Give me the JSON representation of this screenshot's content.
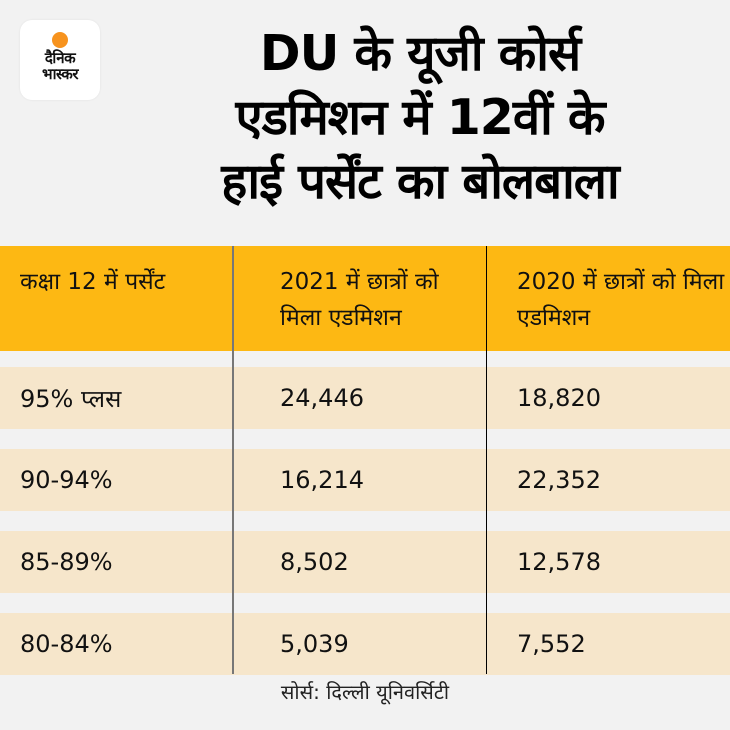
{
  "logo": {
    "line1": "दैनिक",
    "line2": "भास्कर",
    "dot_color": "#f7931e"
  },
  "title": {
    "line1": "DU के यूजी कोर्स",
    "line2": "एडमिशन में 12वीं के",
    "line3": "हाई पर्सेंट का बोलबाला"
  },
  "table": {
    "headers": [
      "कक्षा 12 में पर्सेंट",
      "2021 में छात्रों को मिला एडमिशन",
      "2020 में छात्रों को मिला एडमिशन"
    ],
    "rows": [
      [
        "95% प्लस",
        "24,446",
        "18,820"
      ],
      [
        "90-94%",
        "16,214",
        "22,352"
      ],
      [
        "85-89%",
        "8,502",
        "12,578"
      ],
      [
        "80-84%",
        "5,039",
        "7,552"
      ]
    ],
    "header_color": "#fdb813",
    "row_color": "#f6e6cb"
  },
  "source": "सोर्स: दिल्ली यूनिवर्सिटी"
}
